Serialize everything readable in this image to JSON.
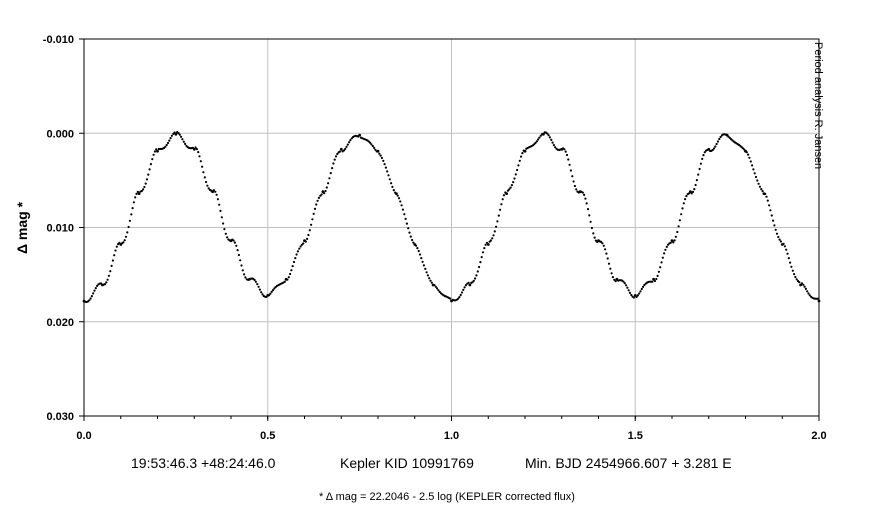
{
  "chart_data": {
    "type": "scatter",
    "title": "",
    "xlabel": "",
    "ylabel": "Δ mag *",
    "xlim": [
      0.0,
      2.0
    ],
    "ylim": [
      -0.01,
      0.03
    ],
    "y_inverted": true,
    "grid": true,
    "x_ticks": [
      {
        "value": 0.0,
        "label": "0.0"
      },
      {
        "value": 0.5,
        "label": "0.5"
      },
      {
        "value": 1.0,
        "label": "1.0"
      },
      {
        "value": 1.5,
        "label": "1.5"
      },
      {
        "value": 2.0,
        "label": "2.0"
      }
    ],
    "y_ticks": [
      {
        "value": -0.01,
        "label": "-0.010"
      },
      {
        "value": 0.0,
        "label": "0.000"
      },
      {
        "value": 0.01,
        "label": "0.010"
      },
      {
        "value": 0.02,
        "label": "0.020"
      },
      {
        "value": 0.03,
        "label": "0.030"
      }
    ],
    "series": [
      {
        "marker_color": "#000000",
        "x": [
          0.0,
          0.05,
          0.1,
          0.15,
          0.2,
          0.25,
          0.3,
          0.35,
          0.4,
          0.45,
          0.5,
          0.55,
          0.6,
          0.65,
          0.7,
          0.75,
          0.8,
          0.85,
          0.9,
          0.95,
          1.0,
          1.05,
          1.1,
          1.15,
          1.2,
          1.25,
          1.3,
          1.35,
          1.4,
          1.45,
          1.5,
          1.55,
          1.6,
          1.65,
          1.7,
          1.75,
          1.8,
          1.85,
          1.9,
          1.95,
          2.0
        ],
        "y": [
          0.0178,
          0.0161,
          0.0118,
          0.0064,
          0.0019,
          0.0001,
          0.0017,
          0.0062,
          0.0114,
          0.0155,
          0.0172,
          0.0155,
          0.0114,
          0.0062,
          0.0017,
          0.0002,
          0.0019,
          0.0064,
          0.0118,
          0.0161,
          0.0178,
          0.0161,
          0.0118,
          0.0064,
          0.0019,
          0.0001,
          0.0017,
          0.0062,
          0.0114,
          0.0155,
          0.0172,
          0.0155,
          0.0114,
          0.0062,
          0.0017,
          0.0002,
          0.0019,
          0.0064,
          0.0118,
          0.0161,
          0.0178
        ]
      }
    ],
    "annotations": {
      "info_coords": "19:53:46.3 +48:24:46.0",
      "info_star": "Kepler KID 10991769",
      "info_ephemeris": "Min. BJD 2454966.607 + 3.281 E",
      "footnote": "* Δ mag = 22.2046 - 2.5 log (KEPLER corrected flux)",
      "credit": "Period analysis  R.  Jansen"
    }
  }
}
